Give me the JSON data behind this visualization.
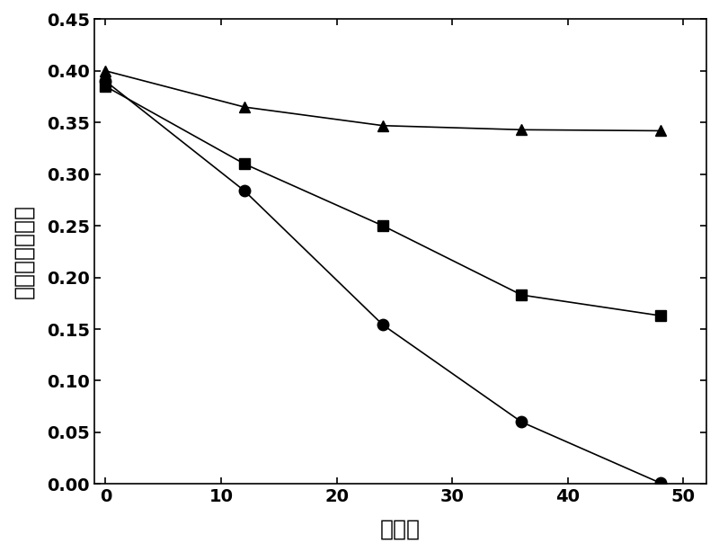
{
  "title": "",
  "xlabel": "时　间",
  "ylabel": "硝基本　浓　度",
  "xlim": [
    -1,
    52
  ],
  "ylim": [
    0.0,
    0.45
  ],
  "xticks": [
    0,
    10,
    20,
    30,
    40,
    50
  ],
  "yticks": [
    0.0,
    0.05,
    0.1,
    0.15,
    0.2,
    0.25,
    0.3,
    0.35,
    0.4,
    0.45
  ],
  "series": [
    {
      "x": [
        0,
        12,
        24,
        36,
        48
      ],
      "y": [
        0.4,
        0.365,
        0.347,
        0.343,
        0.342
      ],
      "marker": "^",
      "color": "#000000",
      "markersize": 9,
      "linewidth": 1.2
    },
    {
      "x": [
        0,
        12,
        24,
        36,
        48
      ],
      "y": [
        0.385,
        0.31,
        0.25,
        0.183,
        0.163
      ],
      "marker": "s",
      "color": "#000000",
      "markersize": 9,
      "linewidth": 1.2
    },
    {
      "x": [
        0,
        12,
        24,
        36,
        48
      ],
      "y": [
        0.39,
        0.284,
        0.154,
        0.06,
        0.001
      ],
      "marker": "o",
      "color": "#000000",
      "markersize": 9,
      "linewidth": 1.2
    }
  ],
  "background_color": "#ffffff",
  "tick_fontsize": 14,
  "tick_fontweight": "bold",
  "label_fontsize": 18
}
